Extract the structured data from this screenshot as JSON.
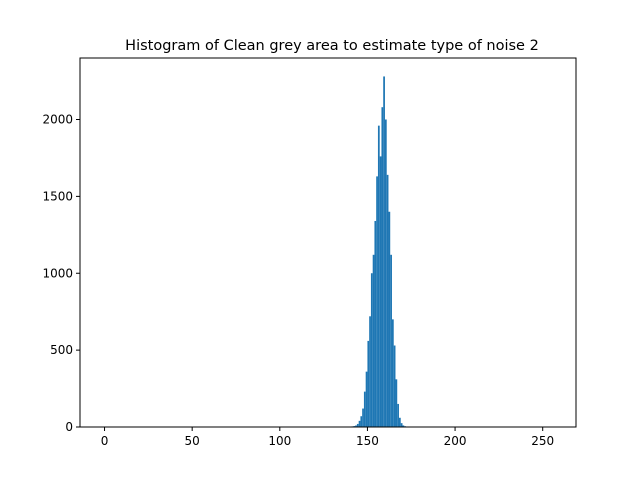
{
  "chart_data": {
    "type": "bar",
    "title": "Histogram of Clean grey area to estimate type of noise 2",
    "xlabel": "",
    "ylabel": "",
    "xlim": [
      -14,
      269
    ],
    "ylim": [
      0,
      2400
    ],
    "xticks": [
      0,
      50,
      100,
      150,
      200,
      250
    ],
    "yticks": [
      0,
      500,
      1000,
      1500,
      2000
    ],
    "grid": false,
    "bar_color": "#1f77b4",
    "bin_width": 1,
    "bins": [
      {
        "x": 140,
        "value": 3
      },
      {
        "x": 141,
        "value": 4
      },
      {
        "x": 142,
        "value": 6
      },
      {
        "x": 143,
        "value": 10
      },
      {
        "x": 144,
        "value": 20
      },
      {
        "x": 145,
        "value": 40
      },
      {
        "x": 146,
        "value": 70
      },
      {
        "x": 147,
        "value": 120
      },
      {
        "x": 148,
        "value": 230
      },
      {
        "x": 149,
        "value": 360
      },
      {
        "x": 150,
        "value": 560
      },
      {
        "x": 151,
        "value": 720
      },
      {
        "x": 152,
        "value": 1000
      },
      {
        "x": 153,
        "value": 1120
      },
      {
        "x": 154,
        "value": 1340
      },
      {
        "x": 155,
        "value": 1630
      },
      {
        "x": 156,
        "value": 1960
      },
      {
        "x": 157,
        "value": 1760
      },
      {
        "x": 158,
        "value": 2080
      },
      {
        "x": 159,
        "value": 2280
      },
      {
        "x": 160,
        "value": 2000
      },
      {
        "x": 161,
        "value": 1640
      },
      {
        "x": 162,
        "value": 1400
      },
      {
        "x": 163,
        "value": 1120
      },
      {
        "x": 164,
        "value": 700
      },
      {
        "x": 165,
        "value": 530
      },
      {
        "x": 166,
        "value": 310
      },
      {
        "x": 167,
        "value": 150
      },
      {
        "x": 168,
        "value": 60
      },
      {
        "x": 169,
        "value": 25
      },
      {
        "x": 170,
        "value": 10
      },
      {
        "x": 171,
        "value": 5
      },
      {
        "x": 172,
        "value": 3
      }
    ]
  }
}
